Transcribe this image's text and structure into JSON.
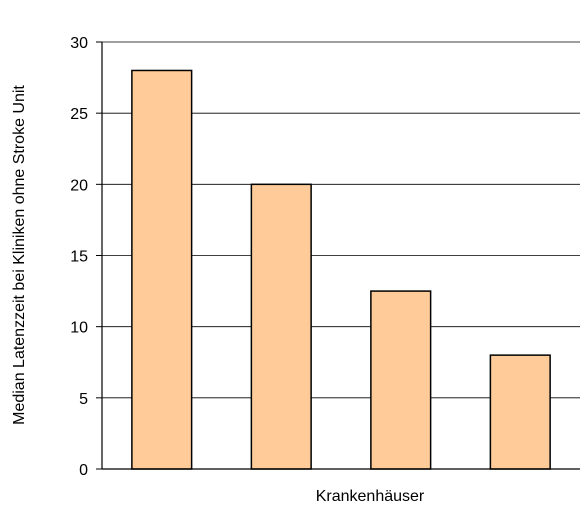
{
  "chart_data": {
    "type": "bar",
    "title": "",
    "xlabel": "Krankenhäuser",
    "ylabel": "Median Latenzzeit bei Kliniken ohne Stroke Unit",
    "categories": [
      "",
      "",
      "",
      ""
    ],
    "values": [
      28,
      20,
      12.5,
      8
    ],
    "ylim": [
      0,
      30
    ],
    "yticks": [
      0,
      5,
      10,
      15,
      20,
      25,
      30
    ],
    "grid": true,
    "legend": "none",
    "bar_color": "#FFCC99",
    "bar_stroke": "#000000",
    "grid_color": "#000000"
  }
}
